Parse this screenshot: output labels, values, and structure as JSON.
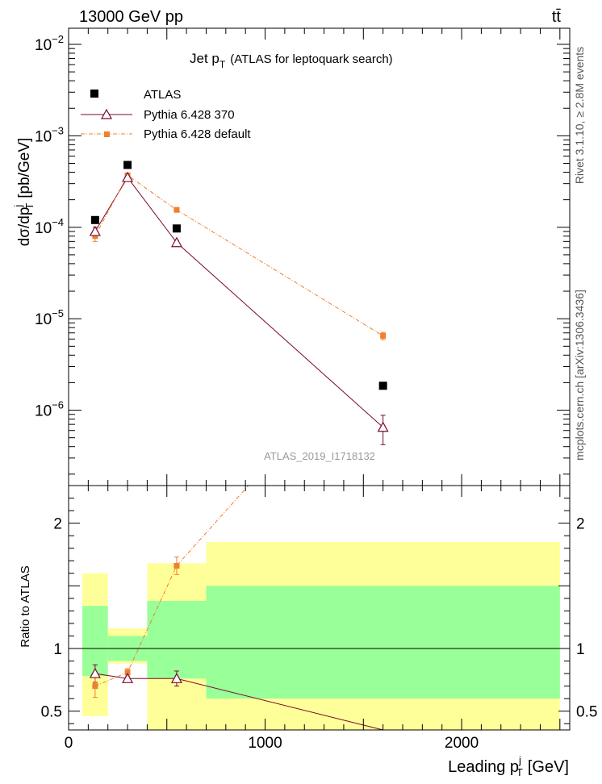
{
  "header": {
    "left": "13000 GeV pp",
    "right": "tt̄"
  },
  "side": {
    "upper": "Rivet 3.1.10, ≥ 2.8M events",
    "lower": "mcplots.cern.ch [arXiv:1306.3436]"
  },
  "chart_data": [
    {
      "type": "line",
      "title": "Jet p",
      "title_sub": "T",
      "title_suffix": "(ATLAS for leptoquark search)",
      "ylabel": "dσ/dp",
      "ylabel_sup": "j",
      "ylabel_sub": "T",
      "ylabel_unit": "[pb/GeV]",
      "yscale": "log",
      "xlim": [
        0,
        2550
      ],
      "ylim": [
        1.5e-07,
        0.015
      ],
      "y_ticks": [
        {
          "v": 1e-06,
          "label": "10",
          "exp": "−6"
        },
        {
          "v": 1e-05,
          "label": "10",
          "exp": "−5"
        },
        {
          "v": 0.0001,
          "label": "10",
          "exp": "−4"
        },
        {
          "v": 0.001,
          "label": "10",
          "exp": "−3"
        },
        {
          "v": 0.01,
          "label": "10",
          "exp": "−2"
        }
      ],
      "analysis_label": "ATLAS_2019_I1718132",
      "legend_position": "top-left",
      "series": [
        {
          "name": "ATLAS",
          "color": "#000000",
          "marker": "square",
          "x": [
            135,
            300,
            550,
            1600
          ],
          "y": [
            0.00012,
            0.00048,
            9.7e-05,
            1.85e-06
          ]
        },
        {
          "name": "Pythia 6.428 370",
          "color": "#7a0a2a",
          "marker": "open-triangle",
          "x": [
            135,
            300,
            550,
            1600
          ],
          "y": [
            9e-05,
            0.00035,
            6.8e-05,
            6.5e-07
          ],
          "err_low": [
            1e-05,
            2e-05,
            4e-06,
            2.3e-07
          ],
          "err_high": [
            1e-05,
            2e-05,
            4e-06,
            2.3e-07
          ]
        },
        {
          "name": "Pythia 6.428 default",
          "color": "#f07f2f",
          "marker": "filled-square",
          "x": [
            135,
            300,
            550,
            1600
          ],
          "y": [
            8e-05,
            0.00037,
            0.000155,
            6.5e-06
          ],
          "err_low": [
            1e-05,
            1.5e-05,
            6e-06,
            6e-07
          ],
          "err_high": [
            1e-05,
            1.5e-05,
            6e-06,
            6e-07
          ]
        }
      ]
    },
    {
      "type": "line",
      "ylabel": "Ratio to ATLAS",
      "xlabel": "Leading p",
      "xlabel_sup": "j",
      "xlabel_sub": "T",
      "xlabel_unit": "[GeV]",
      "xlim": [
        0,
        2550
      ],
      "ylim": [
        0.35,
        2.3
      ],
      "x_ticks": [
        {
          "v": 0,
          "label": "0"
        },
        {
          "v": 1000,
          "label": "1000"
        },
        {
          "v": 2000,
          "label": "2000"
        }
      ],
      "y_ticks": [
        {
          "v": 0.5,
          "label": "0.5"
        },
        {
          "v": 1,
          "label": "1"
        },
        {
          "v": 2,
          "label": "2"
        }
      ],
      "bands": [
        {
          "x0": 70,
          "x1": 200,
          "stat": [
            0.78,
            1.34
          ],
          "total": [
            0.46,
            1.6
          ]
        },
        {
          "x0": 200,
          "x1": 400,
          "stat": [
            0.9,
            1.1
          ],
          "total": [
            0.88,
            1.16
          ]
        },
        {
          "x0": 400,
          "x1": 700,
          "stat": [
            0.76,
            1.38
          ],
          "total": [
            0.35,
            1.68
          ]
        },
        {
          "x0": 700,
          "x1": 2500,
          "stat": [
            0.6,
            1.5
          ],
          "total": [
            0.35,
            1.85
          ]
        }
      ],
      "band_colors": {
        "stat": "#99ff99",
        "total": "#ffff99"
      },
      "series": [
        {
          "name": "Pythia 6.428 370",
          "color": "#7a0a2a",
          "x": [
            135,
            300,
            550,
            1600
          ],
          "y": [
            0.8,
            0.76,
            0.76,
            0.35
          ],
          "err": [
            0.07,
            0.03,
            0.06,
            0
          ]
        },
        {
          "name": "Pythia 6.428 default",
          "color": "#f07f2f",
          "x": [
            135,
            300,
            550,
            1600
          ],
          "y": [
            0.7,
            0.81,
            1.66,
            3.5
          ],
          "err": [
            0.09,
            0.03,
            0.07,
            0
          ]
        }
      ]
    }
  ]
}
